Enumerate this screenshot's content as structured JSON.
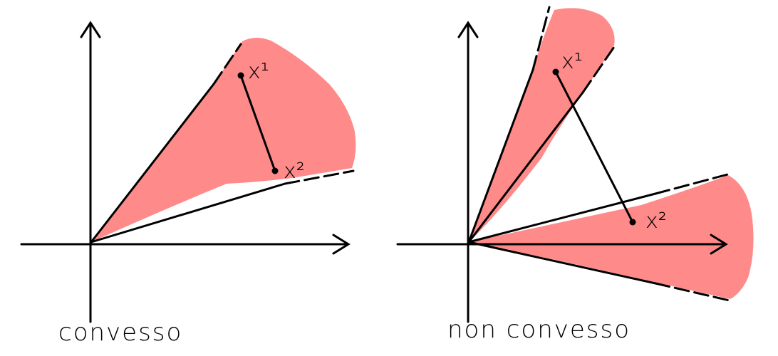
{
  "panels": [
    {
      "caption": "convesso",
      "point_labels": {
        "p1": "x¹",
        "p2": "x²"
      }
    },
    {
      "caption": "non convesso",
      "point_labels": {
        "p1": "x¹",
        "p2": "x²"
      }
    }
  ],
  "colors": {
    "fill": "#ff8a8a",
    "ink": "#000000",
    "background": "#ffffff"
  }
}
